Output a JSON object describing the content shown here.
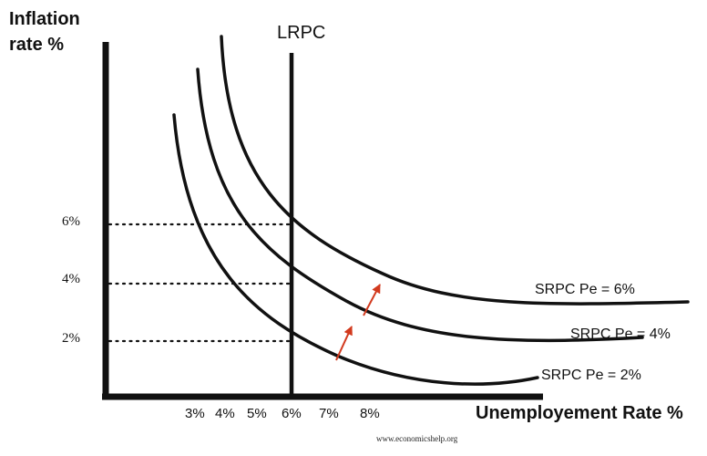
{
  "axes": {
    "y_title_line1": "Inflation",
    "y_title_line2": "rate %",
    "x_title": "Unemployement Rate %"
  },
  "lrpc": {
    "label": "LRPC",
    "unemployment_pct": 6
  },
  "x_ticks": [
    "3%",
    "4%",
    "5%",
    "6%",
    "7%",
    "8%"
  ],
  "y_ticks": [
    "6%",
    "4%",
    "2%"
  ],
  "curves": [
    {
      "label": "SRPC Pe = 6%",
      "expected_inflation_pct": 6
    },
    {
      "label": "SRPC  Pe = 4%",
      "expected_inflation_pct": 4
    },
    {
      "label": "SRPC Pe = 2%",
      "expected_inflation_pct": 2
    }
  ],
  "shift_arrows": [
    {
      "from": "SRPC Pe = 2%",
      "to": "SRPC  Pe = 4%"
    },
    {
      "from": "SRPC  Pe = 4%",
      "to": "SRPC Pe = 6%"
    }
  ],
  "credit": "www.economicshelp.org",
  "colors": {
    "lines": "#111111",
    "arrows": "#d23a1e",
    "background": "#ffffff"
  }
}
